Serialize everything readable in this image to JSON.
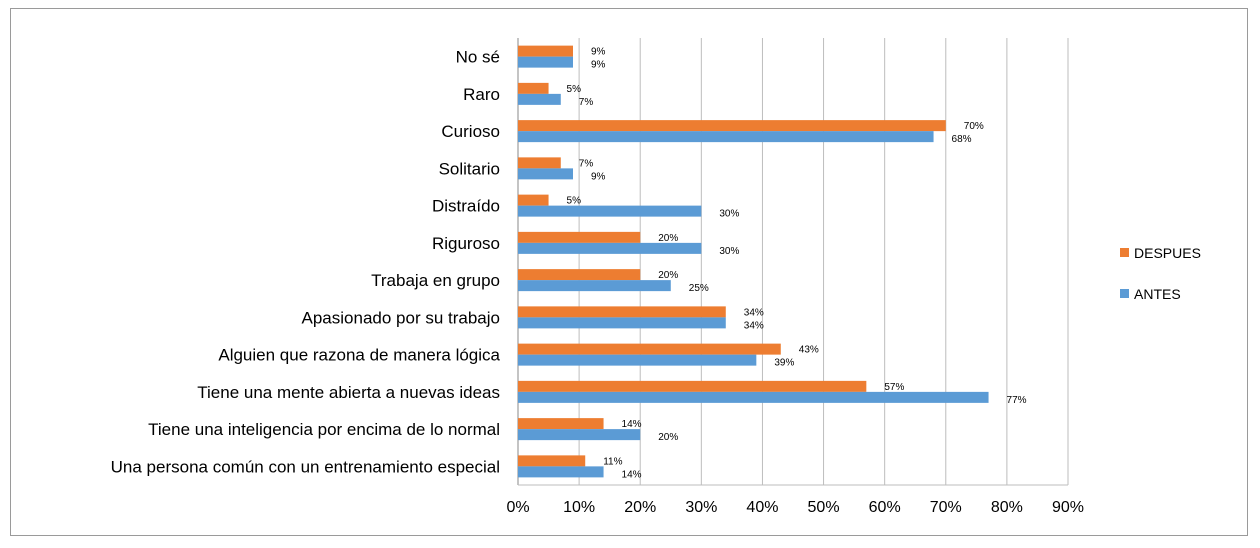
{
  "chart_data": {
    "type": "bar",
    "orientation": "horizontal",
    "title": "",
    "xlabel": "",
    "ylabel": "",
    "xlim": [
      0,
      90
    ],
    "x_ticks": [
      "0%",
      "10%",
      "20%",
      "30%",
      "40%",
      "50%",
      "60%",
      "70%",
      "80%",
      "90%"
    ],
    "grid": "vertical",
    "legend_position": "right",
    "categories": [
      "No sé",
      "Raro",
      "Curioso",
      "Solitario",
      "Distraído",
      "Riguroso",
      "Trabaja en grupo",
      "Apasionado por su trabajo",
      "Alguien que razona de manera lógica",
      "Tiene una mente abierta a nuevas ideas",
      "Tiene una inteligencia por encima de lo normal",
      "Una persona común con un entrenamiento especial"
    ],
    "series": [
      {
        "name": "DESPUES",
        "color": "#ED7D31",
        "values": [
          9,
          5,
          70,
          7,
          5,
          20,
          20,
          34,
          43,
          57,
          14,
          11
        ],
        "labels": [
          "9%",
          "5%",
          "70%",
          "7%",
          "5%",
          "20%",
          "20%",
          "34%",
          "43%",
          "57%",
          "14%",
          "11%"
        ]
      },
      {
        "name": "ANTES",
        "color": "#5B9BD5",
        "values": [
          9,
          7,
          68,
          9,
          30,
          30,
          25,
          34,
          39,
          77,
          20,
          14
        ],
        "labels": [
          "9%",
          "7%",
          "68%",
          "9%",
          "30%",
          "30%",
          "25%",
          "34%",
          "39%",
          "77%",
          "20%",
          "14%"
        ]
      }
    ]
  }
}
